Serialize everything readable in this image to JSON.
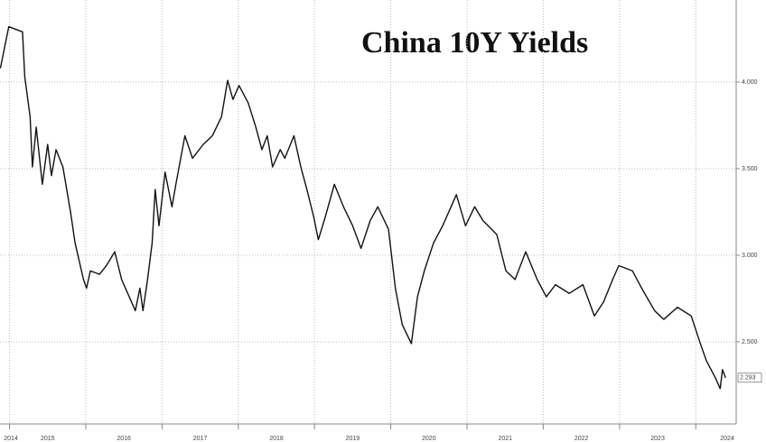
{
  "chart_data": {
    "type": "line",
    "title": "China 10Y Yields",
    "x": [
      2014.88,
      2014.99,
      2015.17,
      2015.2,
      2015.27,
      2015.3,
      2015.35,
      2015.43,
      2015.5,
      2015.55,
      2015.61,
      2015.7,
      2015.8,
      2015.86,
      2015.97,
      2016.01,
      2016.06,
      2016.18,
      2016.27,
      2016.38,
      2016.47,
      2016.57,
      2016.65,
      2016.71,
      2016.75,
      2016.81,
      2016.87,
      2016.91,
      2016.96,
      2017.04,
      2017.13,
      2017.19,
      2017.3,
      2017.4,
      2017.54,
      2017.66,
      2017.78,
      2017.86,
      2017.93,
      2018.01,
      2018.13,
      2018.23,
      2018.31,
      2018.38,
      2018.45,
      2018.55,
      2018.61,
      2018.73,
      2018.82,
      2018.9,
      2018.99,
      2019.05,
      2019.14,
      2019.26,
      2019.38,
      2019.5,
      2019.61,
      2019.73,
      2019.83,
      2019.97,
      2020.06,
      2020.15,
      2020.27,
      2020.35,
      2020.44,
      2020.56,
      2020.68,
      2020.86,
      2020.98,
      2021.1,
      2021.21,
      2021.39,
      2021.51,
      2021.63,
      2021.77,
      2021.92,
      2022.04,
      2022.16,
      2022.34,
      2022.52,
      2022.67,
      2022.79,
      2022.91,
      2022.99,
      2023.17,
      2023.29,
      2023.46,
      2023.58,
      2023.76,
      2023.94,
      2024.06,
      2024.14,
      2024.26,
      2024.32,
      2024.35,
      2024.39
    ],
    "series": [
      {
        "color": "#111111",
        "values": [
          4.08,
          4.32,
          4.29,
          4.03,
          3.8,
          3.51,
          3.74,
          3.41,
          3.64,
          3.46,
          3.61,
          3.51,
          3.25,
          3.07,
          2.86,
          2.81,
          2.91,
          2.89,
          2.94,
          3.02,
          2.86,
          2.76,
          2.68,
          2.81,
          2.68,
          2.86,
          3.07,
          3.38,
          3.17,
          3.48,
          3.28,
          3.43,
          3.69,
          3.56,
          3.64,
          3.69,
          3.8,
          4.01,
          3.9,
          3.98,
          3.88,
          3.74,
          3.61,
          3.69,
          3.51,
          3.61,
          3.56,
          3.69,
          3.51,
          3.38,
          3.22,
          3.09,
          3.22,
          3.41,
          3.28,
          3.17,
          3.04,
          3.2,
          3.28,
          3.15,
          2.81,
          2.6,
          2.49,
          2.76,
          2.91,
          3.07,
          3.17,
          3.35,
          3.17,
          3.28,
          3.2,
          3.12,
          2.91,
          2.86,
          3.02,
          2.86,
          2.76,
          2.83,
          2.78,
          2.83,
          2.65,
          2.73,
          2.86,
          2.94,
          2.91,
          2.81,
          2.68,
          2.63,
          2.7,
          2.65,
          2.49,
          2.39,
          2.29,
          2.23,
          2.34,
          2.293
        ]
      }
    ],
    "xlim": [
      2014.875,
      2024.53
    ],
    "xticks": [
      2014,
      2015,
      2016,
      2017,
      2018,
      2019,
      2020,
      2021,
      2022,
      2023,
      2024
    ],
    "ylim": [
      2.026,
      4.474
    ],
    "yticks": [
      {
        "value": 2.5,
        "label": "2.500"
      },
      {
        "value": 3.0,
        "label": "3.000"
      },
      {
        "value": 3.5,
        "label": "3.500"
      },
      {
        "value": 4.0,
        "label": "4.000"
      }
    ],
    "grid": true
  }
}
